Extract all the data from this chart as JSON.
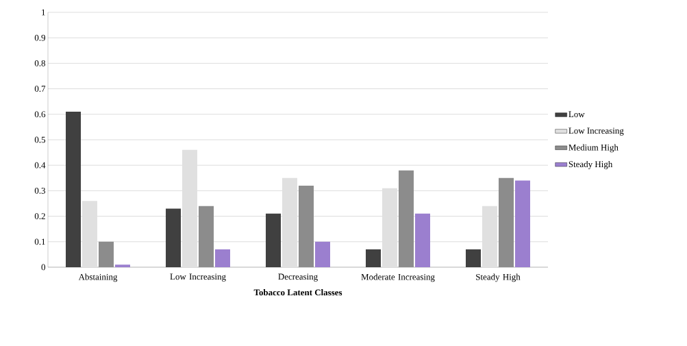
{
  "chart_data": {
    "type": "bar",
    "xlabel": "Tobacco Latent Classes",
    "categories": [
      "Abstaining",
      "Low Increasing",
      "Decreasing",
      "Moderate Increasing",
      "Steady High"
    ],
    "series": [
      {
        "name": "Low",
        "color": "#404040",
        "values": [
          0.61,
          0.23,
          0.21,
          0.07,
          0.07
        ]
      },
      {
        "name": "Low Increasing",
        "color": "#e0e0e0",
        "values": [
          0.26,
          0.46,
          0.35,
          0.31,
          0.24
        ]
      },
      {
        "name": "Medium High",
        "color": "#8c8c8c",
        "values": [
          0.1,
          0.24,
          0.32,
          0.38,
          0.35
        ]
      },
      {
        "name": "Steady High",
        "color": "#9b7fcf",
        "values": [
          0.01,
          0.07,
          0.1,
          0.21,
          0.34
        ]
      }
    ],
    "ylim": [
      0,
      1
    ],
    "yticks": [
      0,
      0.1,
      0.2,
      0.3,
      0.4,
      0.5,
      0.6,
      0.7,
      0.8,
      0.9,
      1
    ],
    "grid": "y",
    "legend": "right"
  }
}
